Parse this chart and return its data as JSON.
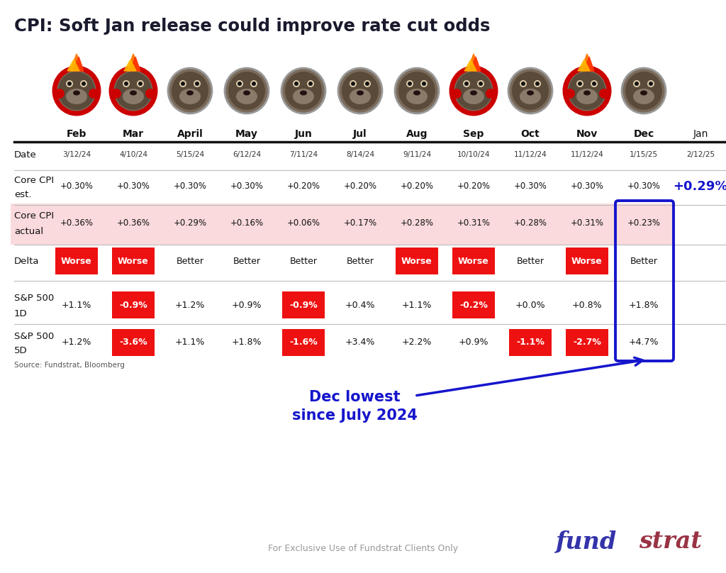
{
  "title": "CPI: Soft Jan release could improve rate cut odds",
  "months": [
    "Feb",
    "Mar",
    "April",
    "May",
    "Jun",
    "Jul",
    "Aug",
    "Sep",
    "Oct",
    "Nov",
    "Dec",
    "Jan"
  ],
  "dates": [
    "3/12/24",
    "4/10/24",
    "5/15/24",
    "6/12/24",
    "7/11/24",
    "8/14/24",
    "9/11/24",
    "10/10/24",
    "11/12/24",
    "11/12/24",
    "1/15/25",
    "2/12/25"
  ],
  "core_cpi_est": [
    "+0.30%",
    "+0.30%",
    "+0.30%",
    "+0.30%",
    "+0.20%",
    "+0.20%",
    "+0.20%",
    "+0.20%",
    "+0.30%",
    "+0.30%",
    "+0.30%",
    "+0.29%"
  ],
  "core_cpi_actual": [
    "+0.36%",
    "+0.36%",
    "+0.29%",
    "+0.16%",
    "+0.06%",
    "+0.17%",
    "+0.28%",
    "+0.31%",
    "+0.28%",
    "+0.31%",
    "+0.23%",
    ""
  ],
  "delta": [
    "Worse",
    "Worse",
    "Better",
    "Better",
    "Better",
    "Better",
    "Worse",
    "Worse",
    "Better",
    "Worse",
    "Better",
    ""
  ],
  "delta_worse": [
    true,
    true,
    false,
    false,
    false,
    false,
    true,
    true,
    false,
    true,
    false,
    false
  ],
  "sp500_1d": [
    "+1.1%",
    "-0.9%",
    "+1.2%",
    "+0.9%",
    "-0.9%",
    "+0.4%",
    "+1.1%",
    "-0.2%",
    "+0.0%",
    "+0.8%",
    "+1.8%",
    ""
  ],
  "sp500_1d_red": [
    false,
    true,
    false,
    false,
    true,
    false,
    false,
    true,
    false,
    false,
    false,
    false
  ],
  "sp500_5d": [
    "+1.2%",
    "-3.6%",
    "+1.1%",
    "+1.8%",
    "-1.6%",
    "+3.4%",
    "+2.2%",
    "+0.9%",
    "-1.1%",
    "-2.7%",
    "+4.7%",
    ""
  ],
  "sp500_5d_red": [
    false,
    true,
    false,
    false,
    true,
    false,
    false,
    false,
    true,
    true,
    false,
    false
  ],
  "fire_months_idx": [
    0,
    1,
    7,
    9
  ],
  "background_color": "#ffffff",
  "title_color": "#1a1a2e",
  "red_color": "#ee1111",
  "pink_bg": "#fadadd",
  "blue_color": "#1515cc",
  "arrow_annotation_line1": "Dec lowest",
  "arrow_annotation_line2": "since July 2024",
  "source_text": "Source: Fundstrat, Bloomberg",
  "footer_text": "For Exclusive Use of Fundstrat Clients Only",
  "fundstrat_color": "#3333aa",
  "strat_color": "#993344"
}
